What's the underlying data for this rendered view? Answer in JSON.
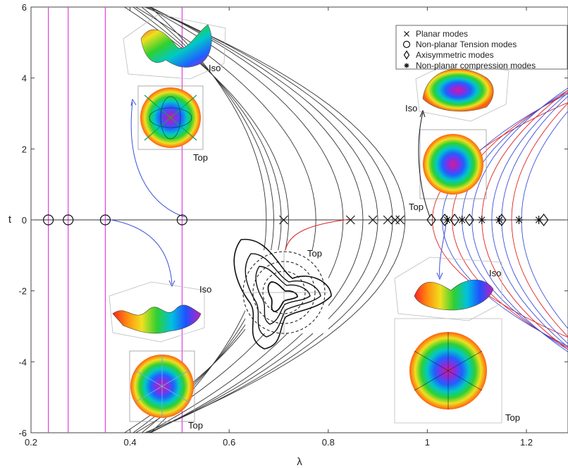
{
  "chart_data": {
    "type": "scatter",
    "xlabel": "λ",
    "ylabel": "t",
    "xlim": [
      0.2,
      1.3
    ],
    "ylim": [
      -6,
      6
    ],
    "xticks": [
      "0.2",
      "0.4",
      "0.6",
      "0.8",
      "1",
      "1.2"
    ],
    "yticks": [
      "-6",
      "-4",
      "-2",
      "0",
      "2",
      "4",
      "6"
    ],
    "grid": false,
    "legend_position": "top-right",
    "legend": [
      {
        "label": "Planar modes",
        "marker": "×"
      },
      {
        "label": "Non-planar Tension modes",
        "marker": "○"
      },
      {
        "label": "Axisymmetric modes",
        "marker": "◇"
      },
      {
        "label": "Non-planar compression modes",
        "marker": "✱"
      }
    ],
    "series": [
      {
        "name": "Planar modes",
        "marker": "x",
        "x": [
          0.71,
          0.845,
          0.89,
          0.92,
          0.935,
          0.945
        ]
      },
      {
        "name": "Non-planar Tension modes",
        "marker": "circle",
        "x": [
          0.235,
          0.275,
          0.35,
          0.505
        ]
      },
      {
        "name": "Axisymmetric modes",
        "marker": "diamond",
        "x": [
          1.008,
          1.035,
          1.055,
          1.085,
          1.15,
          1.235
        ]
      },
      {
        "name": "Non-planar compression modes",
        "marker": "star",
        "x": [
          1.04,
          1.07,
          1.11,
          1.145,
          1.185,
          1.225
        ]
      }
    ],
    "vertical_lines_magenta_x": [
      0.235,
      0.275,
      0.35,
      0.505
    ],
    "colors": {
      "magenta": "#e040e0",
      "black": "#333333",
      "blue": "#3a4fd8",
      "red": "#e02020"
    },
    "insets": {
      "iso_label": "Iso",
      "top_label": "Top"
    }
  }
}
